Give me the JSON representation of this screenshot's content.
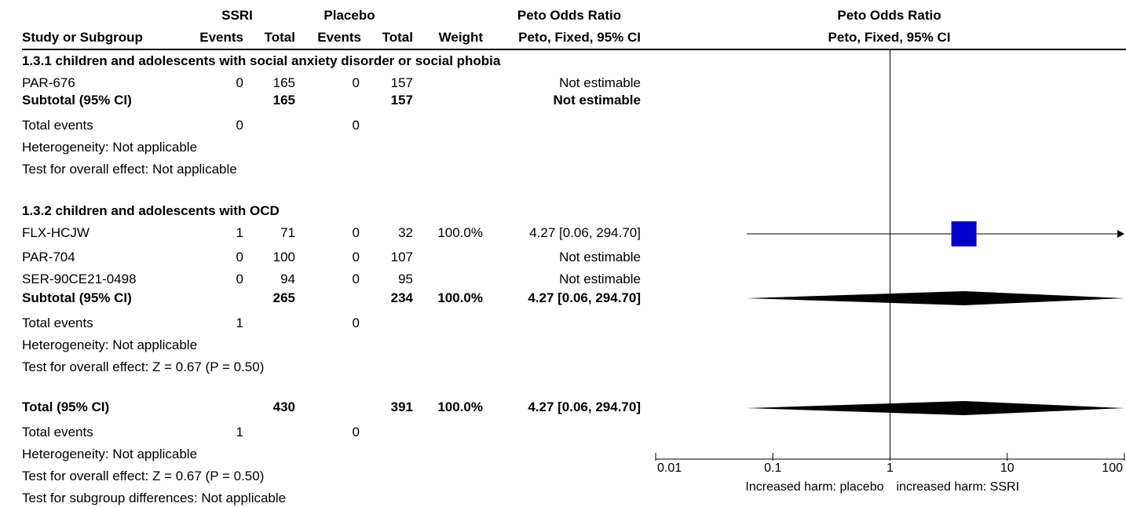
{
  "header": {
    "group1": "SSRI",
    "group2": "Placebo",
    "effect_title": "Peto Odds Ratio",
    "plot_title": "Peto Odds Ratio",
    "columns": {
      "study": "Study or Subgroup",
      "events1": "Events",
      "total1": "Total",
      "events2": "Events",
      "total2": "Total",
      "weight": "Weight",
      "method": "Peto, Fixed, 95% CI"
    },
    "plot_method": "Peto, Fixed, 95% CI"
  },
  "rows": [
    {
      "type": "subgroup",
      "name": "1.3.1 children and adolescents with social anxiety disorder or social phobia"
    },
    {
      "type": "study",
      "name": "PAR-676",
      "e1": "0",
      "t1": "165",
      "e2": "0",
      "t2": "157",
      "weight": "",
      "effect": "Not estimable"
    },
    {
      "type": "subtotal",
      "name": "Subtotal (95% CI)",
      "e1": "",
      "t1": "165",
      "e2": "",
      "t2": "157",
      "weight": "",
      "effect": "Not estimable"
    },
    {
      "type": "events",
      "name": "Total events",
      "e1": "0",
      "e2": "0"
    },
    {
      "type": "note",
      "name": "Heterogeneity: Not applicable"
    },
    {
      "type": "note",
      "name": "Test for overall effect: Not applicable"
    },
    {
      "type": "subgroup",
      "name": "1.3.2 children and adolescents with OCD"
    },
    {
      "type": "study",
      "name": "FLX-HCJW",
      "e1": "1",
      "t1": "71",
      "e2": "0",
      "t2": "32",
      "weight": "100.0%",
      "effect": "4.27 [0.06, 294.70]"
    },
    {
      "type": "study",
      "name": "PAR-704",
      "e1": "0",
      "t1": "100",
      "e2": "0",
      "t2": "107",
      "weight": "",
      "effect": "Not estimable"
    },
    {
      "type": "study",
      "name": "SER-90CE21-0498",
      "e1": "0",
      "t1": "94",
      "e2": "0",
      "t2": "95",
      "weight": "",
      "effect": "Not estimable"
    },
    {
      "type": "subtotal",
      "name": "Subtotal (95% CI)",
      "e1": "",
      "t1": "265",
      "e2": "",
      "t2": "234",
      "weight": "100.0%",
      "effect": "4.27 [0.06, 294.70]"
    },
    {
      "type": "events",
      "name": "Total events",
      "e1": "1",
      "e2": "0"
    },
    {
      "type": "note",
      "name": "Heterogeneity: Not applicable"
    },
    {
      "type": "note",
      "name": "Test for overall effect: Z = 0.67 (P = 0.50)"
    },
    {
      "type": "total",
      "name": "Total (95% CI)",
      "e1": "",
      "t1": "430",
      "e2": "",
      "t2": "391",
      "weight": "100.0%",
      "effect": "4.27 [0.06, 294.70]"
    },
    {
      "type": "events",
      "name": "Total events",
      "e1": "1",
      "e2": "0"
    },
    {
      "type": "note",
      "name": "Heterogeneity: Not applicable"
    },
    {
      "type": "note",
      "name": "Test for overall effect: Z = 0.67 (P = 0.50)"
    },
    {
      "type": "note",
      "name": "Test for subgroup differences: Not applicable"
    }
  ],
  "chart_data": {
    "type": "forest",
    "scale": "log",
    "xlim": [
      0.01,
      100
    ],
    "x_ticks": [
      "0.01",
      "0.1",
      "1",
      "10",
      "100"
    ],
    "x_tick_values": [
      0.01,
      0.1,
      1,
      10,
      100
    ],
    "null_line": 1,
    "left_label": "Increased harm: placebo",
    "right_label": "increased harm: SSRI",
    "studies": [
      {
        "name": "FLX-HCJW",
        "or": 4.27,
        "ci": [
          0.06,
          294.7
        ],
        "weight": 100.0
      }
    ],
    "diamonds": [
      {
        "name": "Subtotal (95% CI)",
        "or": 4.27,
        "ci": [
          0.06,
          294.7
        ]
      },
      {
        "name": "Total (95% CI)",
        "or": 4.27,
        "ci": [
          0.06,
          294.7
        ]
      }
    ],
    "colors": {
      "square": "#0000cc",
      "diamond": "#000000"
    }
  }
}
